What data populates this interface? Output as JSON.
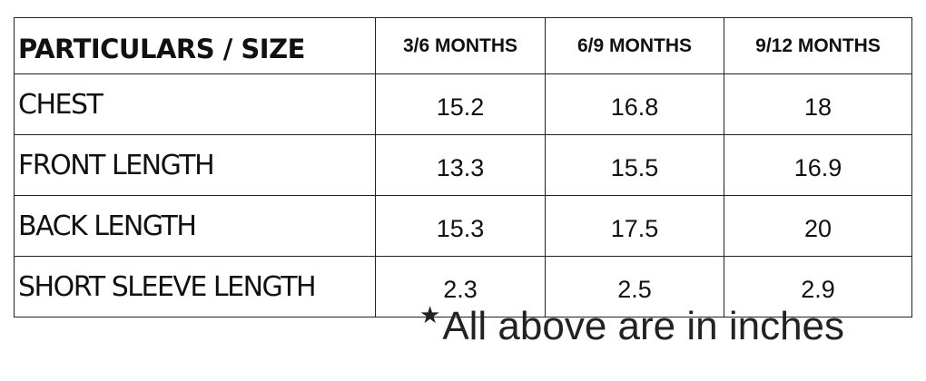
{
  "table": {
    "header": [
      "PARTICULARS / SIZE",
      "3/6 MONTHS",
      "6/9 MONTHS",
      "9/12 MONTHS"
    ],
    "rows": [
      {
        "label": "CHEST",
        "values": [
          "15.2",
          "16.8",
          "18"
        ]
      },
      {
        "label": "FRONT LENGTH",
        "values": [
          "13.3",
          "15.5",
          "16.9"
        ]
      },
      {
        "label": "BACK LENGTH",
        "values": [
          "15.3",
          "17.5",
          "20"
        ]
      },
      {
        "label": "SHORT SLEEVE LENGTH",
        "values": [
          "2.3",
          "2.5",
          "2.9"
        ]
      }
    ]
  },
  "note": {
    "icon": "star-icon",
    "star": "★",
    "text": "All above are in inches"
  }
}
